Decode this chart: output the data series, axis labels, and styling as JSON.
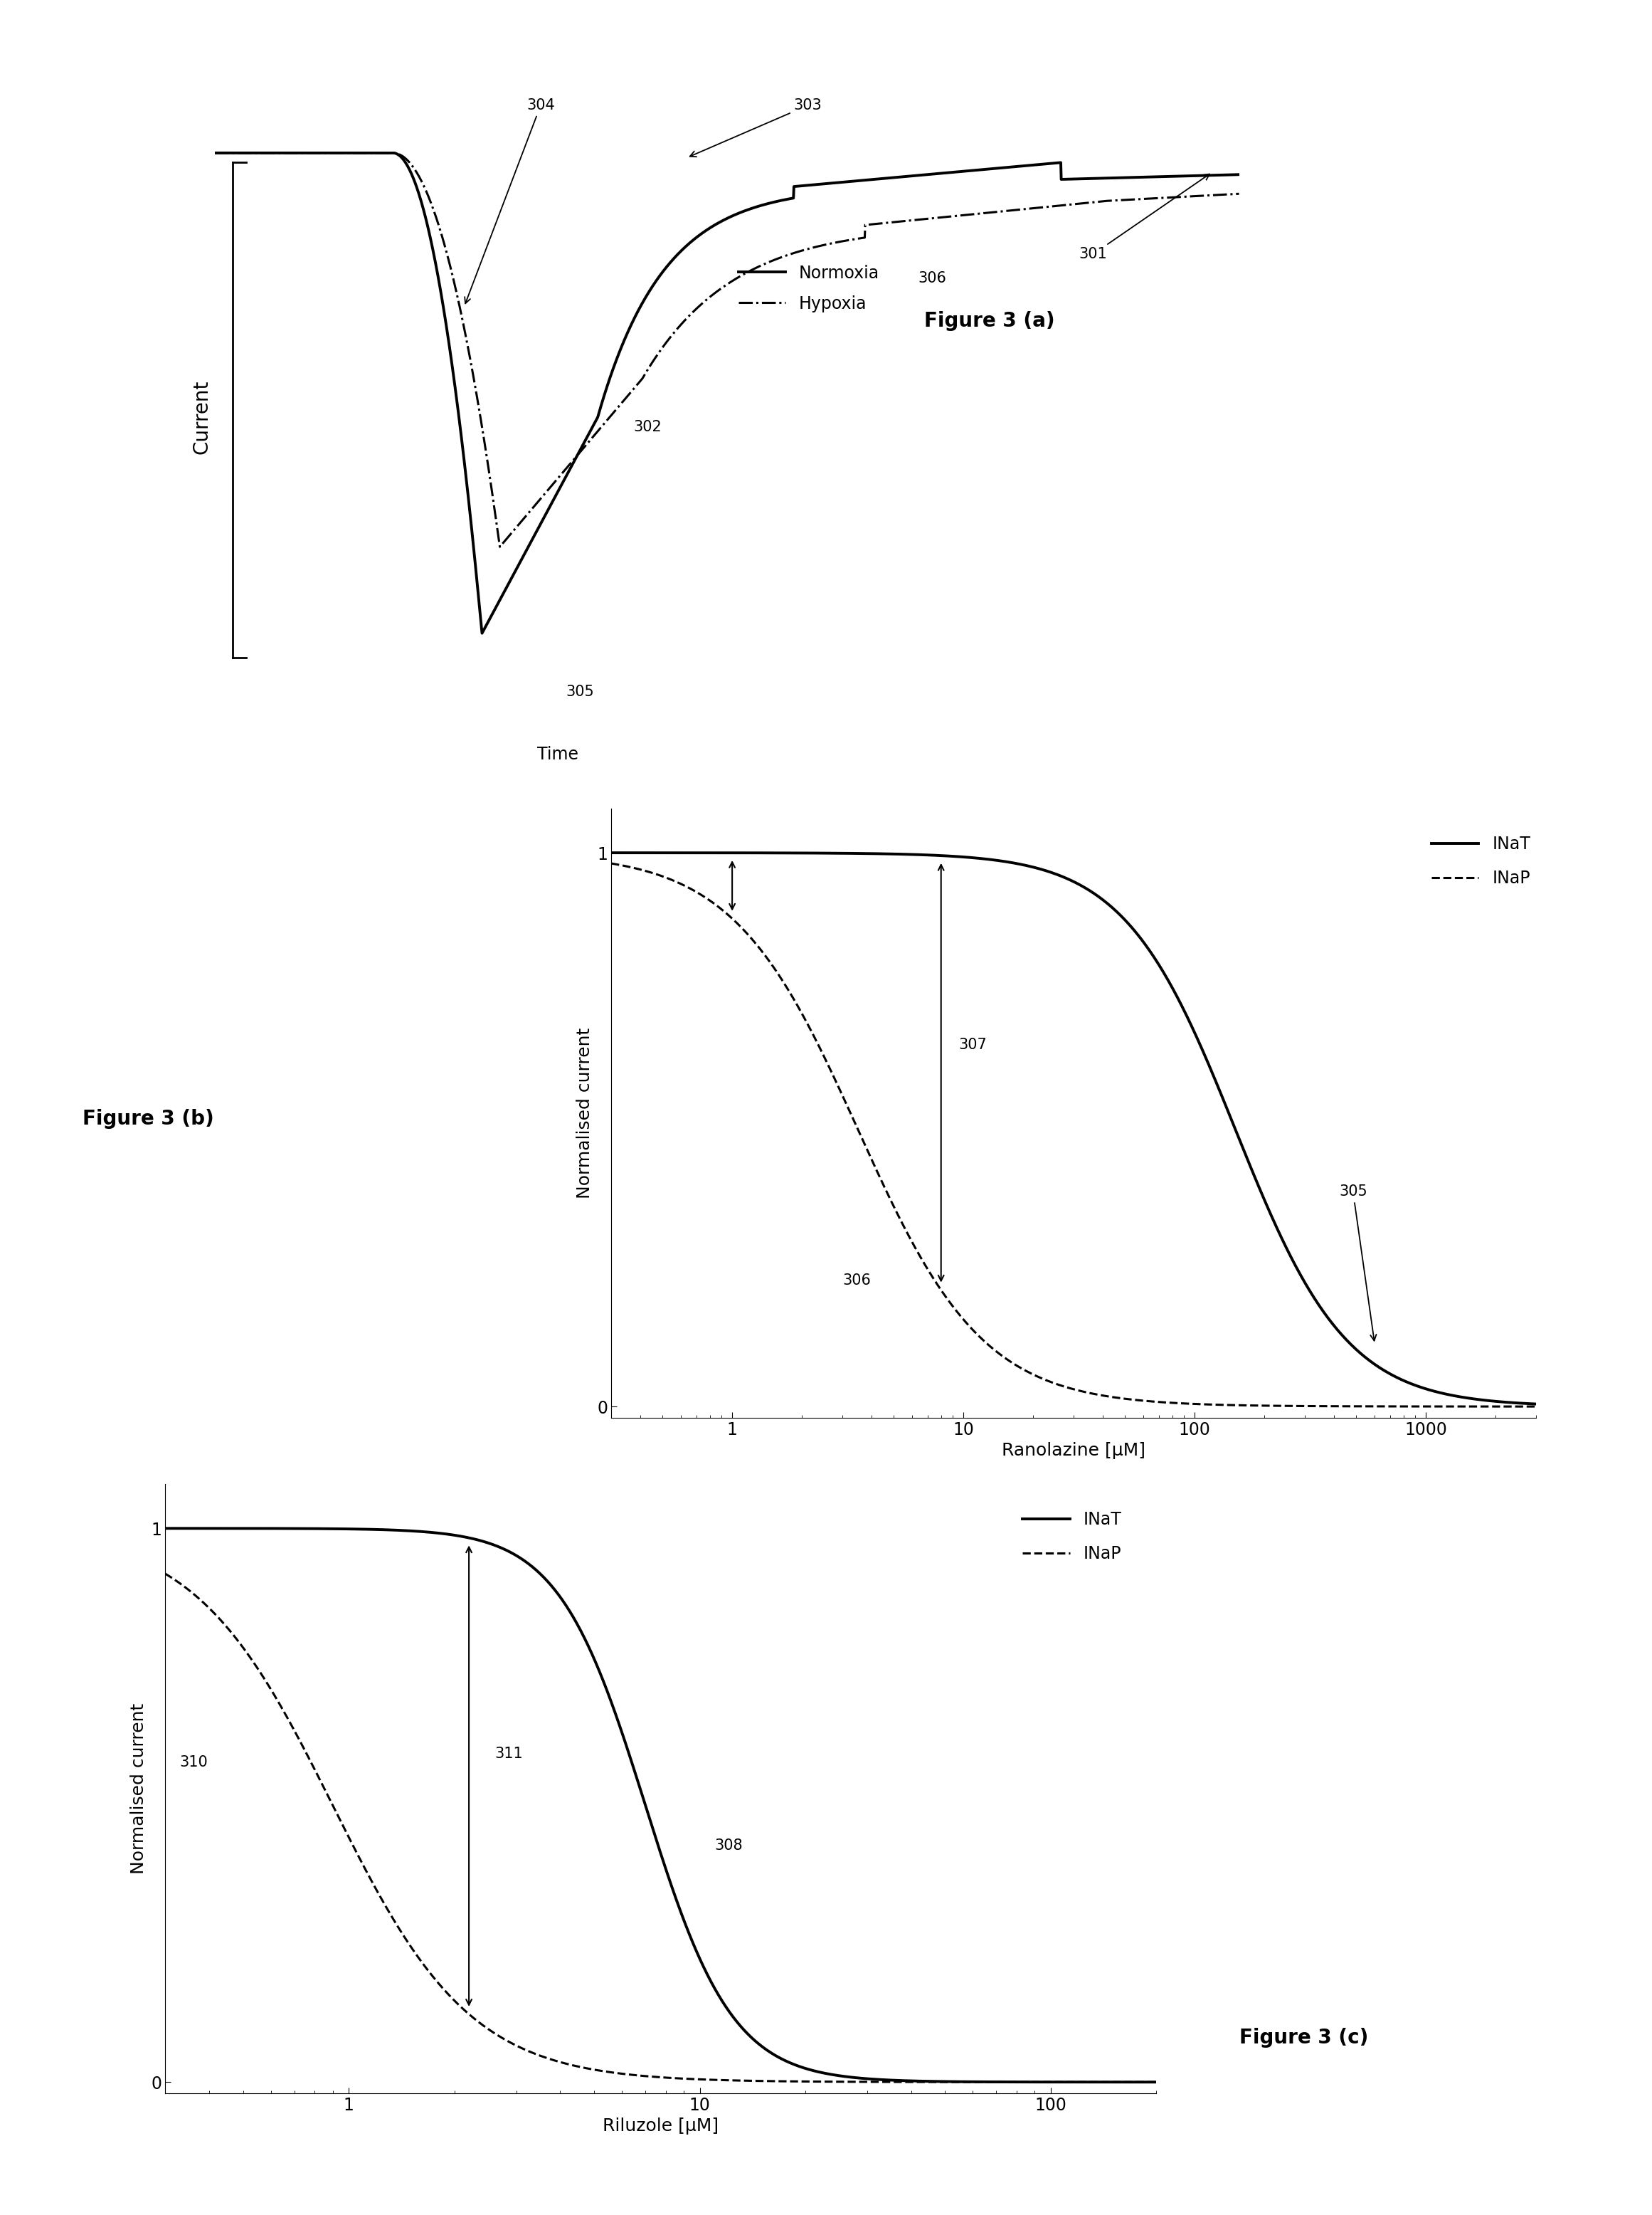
{
  "fig_width": 23.22,
  "fig_height": 31.12,
  "bg_color": "#ffffff",
  "panel_a": {
    "title": "Figure 3 (a)",
    "ylabel": "Current",
    "legend_normoxia": "Normoxia",
    "legend_hypoxia": "Hypoxia"
  },
  "panel_b": {
    "title": "Figure 3 (b)",
    "xlabel": "Ranolazine [μM]",
    "ylabel": "Normalised current",
    "top_label": "Time",
    "legend_INaT": "INaT",
    "legend_INaP": "INaP",
    "ic50_INaT": 150.0,
    "ic50_INaP": 3.5,
    "hill_INaT": 1.8,
    "hill_INaP": 1.6,
    "xmin": 0.3,
    "xmax": 3000
  },
  "panel_c": {
    "title": "Figure 3 (c)",
    "xlabel": "Riluzole [μM]",
    "ylabel": "Normalised current",
    "legend_INaT": "INaT",
    "legend_INaP": "INaP",
    "ic50_INaT": 7.0,
    "ic50_INaP": 0.9,
    "hill_INaT": 3.5,
    "hill_INaP": 2.2,
    "xmin": 0.3,
    "xmax": 200
  }
}
